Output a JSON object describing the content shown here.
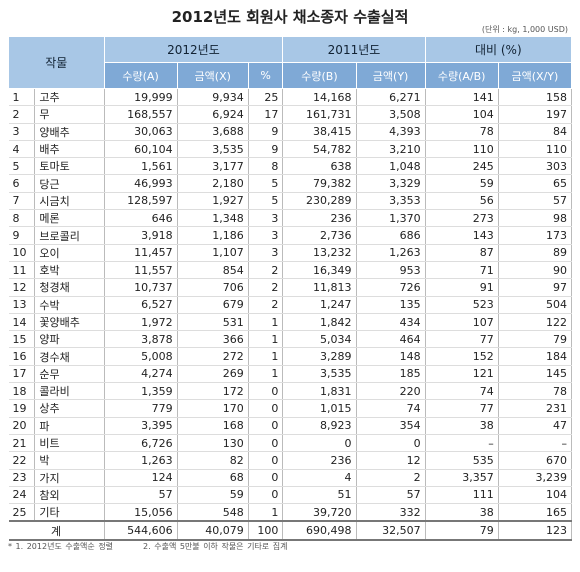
{
  "title": "2012년도 회원사 채소종자 수출실적",
  "unit": "(단위 : kg, 1,000 USD)",
  "header": {
    "crop": "작물",
    "year2012": "2012년도",
    "year2011": "2011년도",
    "ratio": "대비 (%)",
    "qtyA": "수량(A)",
    "amtX": "금액(X)",
    "pct": "%",
    "qtyB": "수량(B)",
    "amtY": "금액(Y)",
    "ratioQ": "수량(A/B)",
    "ratioA": "금액(X/Y)"
  },
  "rows": [
    [
      "1",
      "고추",
      "19,999",
      "9,934",
      "25",
      "14,168",
      "6,271",
      "141",
      "158"
    ],
    [
      "2",
      "무",
      "168,557",
      "6,924",
      "17",
      "161,731",
      "3,508",
      "104",
      "197"
    ],
    [
      "3",
      "양배추",
      "30,063",
      "3,688",
      "9",
      "38,415",
      "4,393",
      "78",
      "84"
    ],
    [
      "4",
      "배추",
      "60,104",
      "3,535",
      "9",
      "54,782",
      "3,210",
      "110",
      "110"
    ],
    [
      "5",
      "토마토",
      "1,561",
      "3,177",
      "8",
      "638",
      "1,048",
      "245",
      "303"
    ],
    [
      "6",
      "당근",
      "46,993",
      "2,180",
      "5",
      "79,382",
      "3,329",
      "59",
      "65"
    ],
    [
      "7",
      "시금치",
      "128,597",
      "1,927",
      "5",
      "230,289",
      "3,353",
      "56",
      "57"
    ],
    [
      "8",
      "메론",
      "646",
      "1,348",
      "3",
      "236",
      "1,370",
      "273",
      "98"
    ],
    [
      "9",
      "브로콜리",
      "3,918",
      "1,186",
      "3",
      "2,736",
      "686",
      "143",
      "173"
    ],
    [
      "10",
      "오이",
      "11,457",
      "1,107",
      "3",
      "13,232",
      "1,263",
      "87",
      "89"
    ],
    [
      "11",
      "호박",
      "11,557",
      "854",
      "2",
      "16,349",
      "953",
      "71",
      "90"
    ],
    [
      "12",
      "청경채",
      "10,737",
      "706",
      "2",
      "11,813",
      "726",
      "91",
      "97"
    ],
    [
      "13",
      "수박",
      "6,527",
      "679",
      "2",
      "1,247",
      "135",
      "523",
      "504"
    ],
    [
      "14",
      "꽃양배추",
      "1,972",
      "531",
      "1",
      "1,842",
      "434",
      "107",
      "122"
    ],
    [
      "15",
      "양파",
      "3,878",
      "366",
      "1",
      "5,034",
      "464",
      "77",
      "79"
    ],
    [
      "16",
      "경수채",
      "5,008",
      "272",
      "1",
      "3,289",
      "148",
      "152",
      "184"
    ],
    [
      "17",
      "순무",
      "4,274",
      "269",
      "1",
      "3,535",
      "185",
      "121",
      "145"
    ],
    [
      "18",
      "콜라비",
      "1,359",
      "172",
      "0",
      "1,831",
      "220",
      "74",
      "78"
    ],
    [
      "19",
      "상추",
      "779",
      "170",
      "0",
      "1,015",
      "74",
      "77",
      "231"
    ],
    [
      "20",
      "파",
      "3,395",
      "168",
      "0",
      "8,923",
      "354",
      "38",
      "47"
    ],
    [
      "21",
      "비트",
      "6,726",
      "130",
      "0",
      "0",
      "0",
      "–",
      "–"
    ],
    [
      "22",
      "박",
      "1,263",
      "82",
      "0",
      "236",
      "12",
      "535",
      "670"
    ],
    [
      "23",
      "가지",
      "124",
      "68",
      "0",
      "4",
      "2",
      "3,357",
      "3,239"
    ],
    [
      "24",
      "참외",
      "57",
      "59",
      "0",
      "51",
      "57",
      "111",
      "104"
    ],
    [
      "25",
      "기타",
      "15,056",
      "548",
      "1",
      "39,720",
      "332",
      "38",
      "165"
    ]
  ],
  "total": {
    "label": "계",
    "values": [
      "544,606",
      "40,079",
      "100",
      "690,498",
      "32,507",
      "79",
      "123"
    ]
  },
  "footnotes": [
    "* 1. 2012년도 수출액순 정렬",
    "2. 수출액 5만불 이하 작물은 기타로 집계"
  ]
}
